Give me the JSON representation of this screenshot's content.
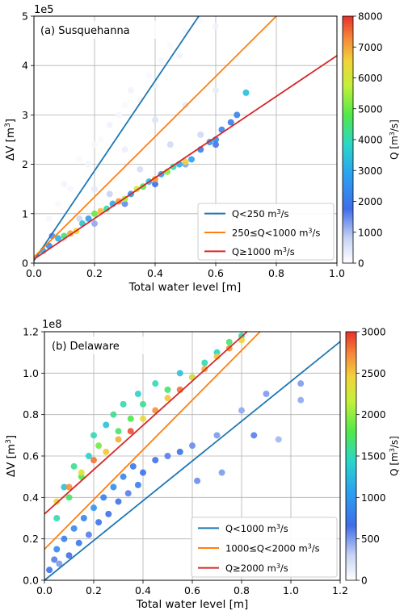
{
  "chart_data": [
    {
      "type": "scatter",
      "panel_label": "(a) Susquehanna",
      "xlabel": "Total water level [m]",
      "ylabel_main": "ΔV [m",
      "ylabel_sup": "3",
      "ylabel_end": "]",
      "y_scale_label": "1e5",
      "xlim": [
        0.0,
        1.0
      ],
      "ylim": [
        0,
        5
      ],
      "y_multiplier": 100000,
      "grid": true,
      "x_ticks": [
        "0.0",
        "0.2",
        "0.4",
        "0.6",
        "0.8",
        "1.0"
      ],
      "y_ticks": [
        "0",
        "1",
        "2",
        "3",
        "4",
        "5"
      ],
      "colorbar": {
        "label_main": "Q [m",
        "label_sup": "3",
        "label_end": "/s]",
        "min": 0,
        "max": 8000,
        "ticks": [
          "0",
          "1000",
          "2000",
          "3000",
          "4000",
          "5000",
          "6000",
          "7000",
          "8000"
        ]
      },
      "legend_position": "lower-right",
      "fit_lines": [
        {
          "legend": "Q<250 m3/s",
          "lt": "Q<250 m",
          "ls": "3",
          "le": "/s",
          "color": "#1f77b4",
          "intercept": 0.05,
          "slope": 9.1
        },
        {
          "legend": "250≤Q<1000 m3/s",
          "lt": "250≤Q<1000 m",
          "ls": "3",
          "le": "/s",
          "color": "#ff7f0e",
          "intercept": 0.12,
          "slope": 6.1
        },
        {
          "legend": "Q≥1000 m3/s",
          "lt": "Q≥1000 m",
          "ls": "3",
          "le": "/s",
          "color": "#d62728",
          "intercept": 0.08,
          "slope": 4.12
        }
      ],
      "points": [
        [
          0.03,
          0.25,
          3000
        ],
        [
          0.05,
          0.35,
          2500
        ],
        [
          0.06,
          0.55,
          1500
        ],
        [
          0.08,
          0.5,
          3200
        ],
        [
          0.1,
          0.55,
          4500
        ],
        [
          0.12,
          0.6,
          7000
        ],
        [
          0.14,
          0.65,
          6500
        ],
        [
          0.16,
          0.8,
          3500
        ],
        [
          0.18,
          0.9,
          2800
        ],
        [
          0.2,
          1.0,
          5000
        ],
        [
          0.22,
          1.05,
          6800
        ],
        [
          0.24,
          1.1,
          4200
        ],
        [
          0.26,
          1.2,
          3000
        ],
        [
          0.28,
          1.25,
          7200
        ],
        [
          0.3,
          1.3,
          5500
        ],
        [
          0.32,
          1.4,
          2600
        ],
        [
          0.34,
          1.5,
          6000
        ],
        [
          0.36,
          1.55,
          4800
        ],
        [
          0.38,
          1.65,
          3300
        ],
        [
          0.4,
          1.7,
          7100
        ],
        [
          0.42,
          1.8,
          2900
        ],
        [
          0.44,
          1.85,
          5200
        ],
        [
          0.46,
          1.95,
          4000
        ],
        [
          0.48,
          2.0,
          3100
        ],
        [
          0.5,
          2.05,
          6500
        ],
        [
          0.52,
          2.1,
          2800
        ],
        [
          0.55,
          2.3,
          2200
        ],
        [
          0.58,
          2.45,
          2600
        ],
        [
          0.6,
          2.5,
          2400
        ],
        [
          0.62,
          2.7,
          2300
        ],
        [
          0.65,
          2.85,
          2100
        ],
        [
          0.67,
          3.0,
          2200
        ],
        [
          0.7,
          3.45,
          3400
        ],
        [
          0.05,
          0.9,
          150
        ],
        [
          0.08,
          1.2,
          100
        ],
        [
          0.1,
          1.6,
          200
        ],
        [
          0.12,
          1.5,
          150
        ],
        [
          0.15,
          2.1,
          100
        ],
        [
          0.18,
          2.0,
          200
        ],
        [
          0.2,
          2.4,
          150
        ],
        [
          0.22,
          2.5,
          100
        ],
        [
          0.25,
          2.8,
          200
        ],
        [
          0.28,
          3.0,
          150
        ],
        [
          0.3,
          3.2,
          100
        ],
        [
          0.32,
          3.5,
          200
        ],
        [
          0.35,
          3.3,
          150
        ],
        [
          0.38,
          3.8,
          100
        ],
        [
          0.4,
          3.6,
          200
        ],
        [
          0.42,
          4.1,
          150
        ],
        [
          0.45,
          4.4,
          100
        ],
        [
          0.48,
          4.2,
          200
        ],
        [
          0.5,
          4.7,
          150
        ],
        [
          0.55,
          4.9,
          100
        ],
        [
          0.6,
          4.8,
          200
        ],
        [
          0.2,
          1.5,
          400
        ],
        [
          0.3,
          2.3,
          300
        ],
        [
          0.4,
          2.9,
          500
        ],
        [
          0.5,
          3.2,
          400
        ],
        [
          0.6,
          3.5,
          350
        ],
        [
          0.55,
          2.6,
          700
        ],
        [
          0.45,
          2.4,
          650
        ],
        [
          0.35,
          1.9,
          600
        ],
        [
          0.25,
          1.4,
          800
        ],
        [
          0.15,
          0.9,
          700
        ],
        [
          0.1,
          0.5,
          500
        ],
        [
          0.2,
          0.8,
          1200
        ],
        [
          0.3,
          1.2,
          1500
        ],
        [
          0.4,
          1.6,
          1800
        ],
        [
          0.5,
          2.0,
          1300
        ],
        [
          0.6,
          2.4,
          1700
        ]
      ]
    },
    {
      "type": "scatter",
      "panel_label": "(b) Delaware",
      "xlabel": "Total water level [m]",
      "ylabel_main": "ΔV [m",
      "ylabel_sup": "3",
      "ylabel_end": "]",
      "y_scale_label": "1e8",
      "xlim": [
        0.0,
        1.2
      ],
      "ylim": [
        0,
        1.2
      ],
      "y_multiplier": 100000000,
      "grid": true,
      "x_ticks": [
        "0.0",
        "0.2",
        "0.4",
        "0.6",
        "0.8",
        "1.0",
        "1.2"
      ],
      "y_ticks": [
        "0.0",
        "0.2",
        "0.4",
        "0.6",
        "0.8",
        "1.0",
        "1.2"
      ],
      "colorbar": {
        "label_main": "Q [m",
        "label_sup": "3",
        "label_end": "/s]",
        "min": 0,
        "max": 3000,
        "ticks": [
          "0",
          "500",
          "1000",
          "1500",
          "2000",
          "2500",
          "3000"
        ]
      },
      "legend_position": "lower-right",
      "fit_lines": [
        {
          "legend": "Q<1000 m3/s",
          "lt": "Q<1000 m",
          "ls": "3",
          "le": "/s",
          "color": "#1f77b4",
          "intercept": 0.0,
          "slope": 0.96
        },
        {
          "legend": "1000≤Q<2000 m3/s",
          "lt": "1000≤Q<2000 m",
          "ls": "3",
          "le": "/s",
          "color": "#ff7f0e",
          "intercept": 0.15,
          "slope": 1.2
        },
        {
          "legend": "Q≥2000 m3/s",
          "lt": "Q≥2000 m",
          "ls": "3",
          "le": "/s",
          "color": "#d62728",
          "intercept": 0.32,
          "slope": 1.07
        }
      ],
      "points": [
        [
          0.02,
          0.05,
          700
        ],
        [
          0.04,
          0.1,
          600
        ],
        [
          0.05,
          0.15,
          900
        ],
        [
          0.06,
          0.08,
          500
        ],
        [
          0.08,
          0.2,
          800
        ],
        [
          0.1,
          0.12,
          650
        ],
        [
          0.12,
          0.25,
          900
        ],
        [
          0.14,
          0.18,
          750
        ],
        [
          0.16,
          0.3,
          850
        ],
        [
          0.18,
          0.22,
          600
        ],
        [
          0.2,
          0.35,
          950
        ],
        [
          0.22,
          0.28,
          700
        ],
        [
          0.24,
          0.4,
          800
        ],
        [
          0.26,
          0.32,
          650
        ],
        [
          0.28,
          0.45,
          900
        ],
        [
          0.3,
          0.38,
          700
        ],
        [
          0.32,
          0.5,
          850
        ],
        [
          0.34,
          0.42,
          600
        ],
        [
          0.36,
          0.55,
          750
        ],
        [
          0.38,
          0.46,
          800
        ],
        [
          0.4,
          0.52,
          700
        ],
        [
          0.45,
          0.58,
          650
        ],
        [
          0.5,
          0.6,
          600
        ],
        [
          0.55,
          0.62,
          700
        ],
        [
          0.6,
          0.65,
          550
        ],
        [
          0.7,
          0.7,
          500
        ],
        [
          0.8,
          0.82,
          450
        ],
        [
          0.85,
          0.7,
          600
        ],
        [
          0.9,
          0.9,
          500
        ],
        [
          1.04,
          0.95,
          500
        ],
        [
          1.04,
          0.87,
          450
        ],
        [
          0.95,
          0.68,
          400
        ],
        [
          0.62,
          0.48,
          550
        ],
        [
          0.72,
          0.52,
          500
        ],
        [
          0.05,
          0.3,
          1500
        ],
        [
          0.08,
          0.45,
          1300
        ],
        [
          0.1,
          0.4,
          1700
        ],
        [
          0.12,
          0.55,
          1600
        ],
        [
          0.15,
          0.5,
          1800
        ],
        [
          0.18,
          0.6,
          1400
        ],
        [
          0.2,
          0.7,
          1500
        ],
        [
          0.22,
          0.65,
          1900
        ],
        [
          0.25,
          0.75,
          1300
        ],
        [
          0.28,
          0.8,
          1600
        ],
        [
          0.3,
          0.72,
          1700
        ],
        [
          0.32,
          0.85,
          1500
        ],
        [
          0.35,
          0.78,
          1800
        ],
        [
          0.38,
          0.9,
          1400
        ],
        [
          0.4,
          0.85,
          1600
        ],
        [
          0.45,
          0.95,
          1500
        ],
        [
          0.5,
          0.92,
          1700
        ],
        [
          0.55,
          1.0,
          1300
        ],
        [
          0.6,
          0.98,
          1600
        ],
        [
          0.65,
          1.05,
          1500
        ],
        [
          0.7,
          1.1,
          1400
        ],
        [
          0.75,
          1.15,
          1700
        ],
        [
          0.8,
          1.18,
          1500
        ],
        [
          0.05,
          0.38,
          2400
        ],
        [
          0.1,
          0.45,
          2700
        ],
        [
          0.15,
          0.52,
          2300
        ],
        [
          0.2,
          0.58,
          2800
        ],
        [
          0.25,
          0.62,
          2500
        ],
        [
          0.3,
          0.68,
          2600
        ],
        [
          0.35,
          0.72,
          2900
        ],
        [
          0.4,
          0.78,
          2400
        ],
        [
          0.45,
          0.82,
          2700
        ],
        [
          0.5,
          0.88,
          2500
        ],
        [
          0.55,
          0.92,
          2800
        ],
        [
          0.6,
          0.98,
          2300
        ],
        [
          0.65,
          1.02,
          2600
        ],
        [
          0.7,
          1.08,
          2500
        ],
        [
          0.75,
          1.12,
          2700
        ],
        [
          0.8,
          1.16,
          2400
        ]
      ]
    }
  ]
}
